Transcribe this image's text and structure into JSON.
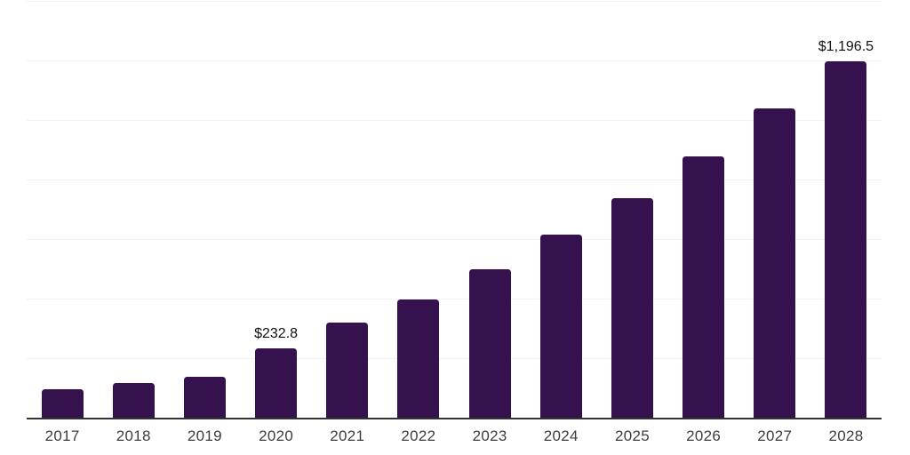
{
  "chart_data": {
    "type": "bar",
    "title": "",
    "xlabel": "",
    "ylabel": "",
    "categories": [
      "2017",
      "2018",
      "2019",
      "2020",
      "2021",
      "2022",
      "2023",
      "2024",
      "2025",
      "2026",
      "2027",
      "2028"
    ],
    "values": [
      95.0,
      116.5,
      138.5,
      232.8,
      320.0,
      397.5,
      498.0,
      613.5,
      736.5,
      878.0,
      1039.5,
      1196.5
    ],
    "data_labels": [
      "",
      "",
      "",
      "$232.8",
      "",
      "",
      "",
      "",
      "",
      "",
      "",
      "$1,196.5"
    ],
    "ylim": [
      0,
      1400
    ],
    "gridline_step": 200,
    "grid": "on",
    "legend": "none",
    "y_axis_tick_labels": "none",
    "colors": {
      "bar": "#35124E",
      "axis_line": "#333333",
      "gridline": "#f2f2f2",
      "tick_label": "#3d3d3d",
      "data_label": "#111111",
      "background": "#ffffff"
    }
  }
}
